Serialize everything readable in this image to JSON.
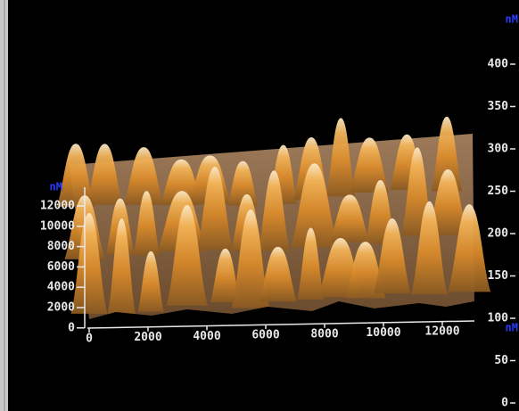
{
  "z_axis": {
    "unit": "nM",
    "ticks": [
      400,
      350,
      300,
      250,
      200,
      150,
      100,
      50,
      0
    ]
  },
  "y_axis": {
    "unit": "nM",
    "ticks": [
      12000,
      10000,
      8000,
      6000,
      4000,
      2000,
      0
    ]
  },
  "x_axis": {
    "unit": "nM",
    "ticks": [
      0,
      2000,
      4000,
      6000,
      8000,
      10000,
      12000
    ]
  }
}
